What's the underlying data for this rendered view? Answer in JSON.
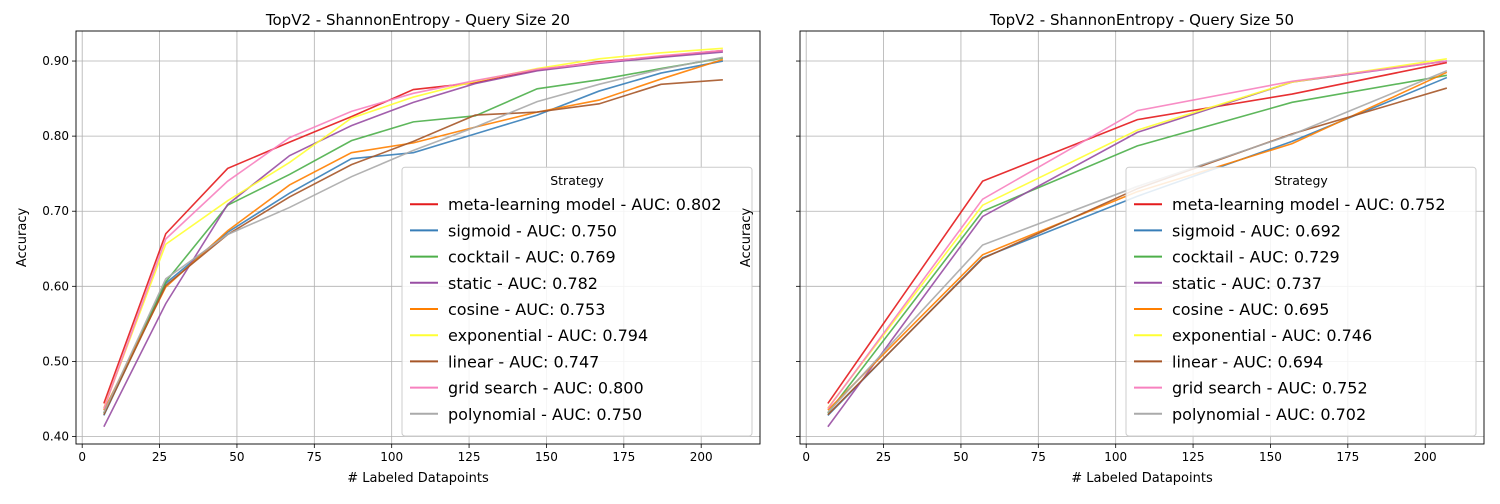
{
  "chart_data": [
    {
      "type": "line",
      "title": "TopV2 - ShannonEntropy - Query Size 20",
      "xlabel": "# Labeled Datapoints",
      "ylabel": "Accuracy",
      "xlim": [
        -2,
        219
      ],
      "ylim": [
        0.39,
        0.94
      ],
      "xticks": [
        0,
        25,
        50,
        75,
        100,
        125,
        150,
        175,
        200
      ],
      "yticks": [
        0.4,
        0.5,
        0.6,
        0.7,
        0.8,
        0.9
      ],
      "ytick_labels": [
        "0.40",
        "0.50",
        "0.60",
        "0.70",
        "0.80",
        "0.90"
      ],
      "grid": true,
      "legend_title": "Strategy",
      "legend_position": "lower-right",
      "series": [
        {
          "name": "meta-learning model - AUC: 0.802",
          "color": "#e41a1c",
          "x": [
            7,
            27,
            47,
            67,
            87,
            107,
            127,
            147,
            167,
            187,
            207
          ],
          "y": [
            0.444,
            0.67,
            0.757,
            0.792,
            0.826,
            0.862,
            0.871,
            0.888,
            0.899,
            0.906,
            0.914
          ]
        },
        {
          "name": "sigmoid - AUC: 0.750",
          "color": "#377eb8",
          "x": [
            7,
            27,
            47,
            67,
            87,
            107,
            127,
            147,
            167,
            187,
            207
          ],
          "y": [
            0.428,
            0.604,
            0.672,
            0.724,
            0.77,
            0.778,
            0.803,
            0.828,
            0.86,
            0.884,
            0.9
          ]
        },
        {
          "name": "cocktail - AUC: 0.769",
          "color": "#4daf4a",
          "x": [
            7,
            27,
            47,
            67,
            87,
            107,
            127,
            147,
            167,
            187,
            207
          ],
          "y": [
            0.431,
            0.606,
            0.708,
            0.749,
            0.794,
            0.819,
            0.827,
            0.863,
            0.875,
            0.89,
            0.904
          ]
        },
        {
          "name": "static - AUC: 0.782",
          "color": "#984ea3",
          "x": [
            7,
            27,
            47,
            67,
            87,
            107,
            127,
            147,
            167,
            187,
            207
          ],
          "y": [
            0.413,
            0.577,
            0.709,
            0.774,
            0.814,
            0.845,
            0.87,
            0.887,
            0.897,
            0.905,
            0.912
          ]
        },
        {
          "name": "cosine - AUC: 0.753",
          "color": "#ff7f00",
          "x": [
            7,
            27,
            47,
            67,
            87,
            107,
            127,
            147,
            167,
            187,
            207
          ],
          "y": [
            0.435,
            0.599,
            0.674,
            0.735,
            0.778,
            0.791,
            0.812,
            0.832,
            0.848,
            0.876,
            0.902
          ]
        },
        {
          "name": "exponential - AUC: 0.794",
          "color": "#ffff33",
          "x": [
            7,
            27,
            47,
            67,
            87,
            107,
            127,
            147,
            167,
            187,
            207
          ],
          "y": [
            0.438,
            0.656,
            0.714,
            0.765,
            0.824,
            0.852,
            0.873,
            0.89,
            0.903,
            0.911,
            0.917
          ]
        },
        {
          "name": "linear - AUC: 0.747",
          "color": "#a65628",
          "x": [
            7,
            27,
            47,
            67,
            87,
            107,
            127,
            147,
            167,
            187,
            207
          ],
          "y": [
            0.429,
            0.601,
            0.669,
            0.719,
            0.762,
            0.793,
            0.828,
            0.832,
            0.843,
            0.869,
            0.875
          ]
        },
        {
          "name": "grid search - AUC: 0.800",
          "color": "#f781bf",
          "x": [
            7,
            27,
            47,
            67,
            87,
            107,
            127,
            147,
            167,
            187,
            207
          ],
          "y": [
            0.437,
            0.663,
            0.74,
            0.798,
            0.833,
            0.857,
            0.874,
            0.889,
            0.898,
            0.907,
            0.914
          ]
        },
        {
          "name": "polynomial - AUC: 0.750",
          "color": "#aaaaaa",
          "x": [
            7,
            27,
            47,
            67,
            87,
            107,
            127,
            147,
            167,
            187,
            207
          ],
          "y": [
            0.432,
            0.61,
            0.669,
            0.705,
            0.746,
            0.781,
            0.812,
            0.846,
            0.869,
            0.889,
            0.905
          ]
        }
      ]
    },
    {
      "type": "line",
      "title": "TopV2 - ShannonEntropy - Query Size 50",
      "xlabel": "# Labeled Datapoints",
      "ylabel": "Accuracy",
      "xlim": [
        -2,
        219
      ],
      "ylim": [
        0.39,
        0.94
      ],
      "xticks": [
        0,
        25,
        50,
        75,
        100,
        125,
        150,
        175,
        200
      ],
      "yticks": [
        0.4,
        0.5,
        0.6,
        0.7,
        0.8,
        0.9
      ],
      "ytick_labels": [
        "",
        "",
        "",
        "",
        "",
        ""
      ],
      "grid": true,
      "legend_title": "Strategy",
      "legend_position": "lower-right",
      "series": [
        {
          "name": "meta-learning model - AUC: 0.752",
          "color": "#e41a1c",
          "x": [
            7,
            57,
            107,
            157,
            207
          ],
          "y": [
            0.444,
            0.74,
            0.822,
            0.856,
            0.898
          ]
        },
        {
          "name": "sigmoid - AUC: 0.692",
          "color": "#377eb8",
          "x": [
            7,
            57,
            107,
            157,
            207
          ],
          "y": [
            0.428,
            0.638,
            0.72,
            0.793,
            0.878
          ]
        },
        {
          "name": "cocktail - AUC: 0.729",
          "color": "#4daf4a",
          "x": [
            7,
            57,
            107,
            157,
            207
          ],
          "y": [
            0.431,
            0.7,
            0.787,
            0.845,
            0.881
          ]
        },
        {
          "name": "static - AUC: 0.737",
          "color": "#984ea3",
          "x": [
            7,
            57,
            107,
            157,
            207
          ],
          "y": [
            0.413,
            0.693,
            0.805,
            0.872,
            0.9
          ]
        },
        {
          "name": "cosine - AUC: 0.695",
          "color": "#ff7f00",
          "x": [
            7,
            57,
            107,
            157,
            207
          ],
          "y": [
            0.435,
            0.642,
            0.726,
            0.79,
            0.885
          ]
        },
        {
          "name": "exponential - AUC: 0.746",
          "color": "#ffff33",
          "x": [
            7,
            57,
            107,
            157,
            207
          ],
          "y": [
            0.438,
            0.708,
            0.808,
            0.872,
            0.903
          ]
        },
        {
          "name": "linear - AUC: 0.694",
          "color": "#a65628",
          "x": [
            7,
            57,
            107,
            157,
            207
          ],
          "y": [
            0.429,
            0.637,
            0.73,
            0.803,
            0.864
          ]
        },
        {
          "name": "grid search - AUC: 0.752",
          "color": "#f781bf",
          "x": [
            7,
            57,
            107,
            157,
            207
          ],
          "y": [
            0.437,
            0.716,
            0.834,
            0.873,
            0.9
          ]
        },
        {
          "name": "polynomial - AUC: 0.702",
          "color": "#aaaaaa",
          "x": [
            7,
            57,
            107,
            157,
            207
          ],
          "y": [
            0.432,
            0.655,
            0.733,
            0.802,
            0.887
          ]
        }
      ]
    }
  ]
}
